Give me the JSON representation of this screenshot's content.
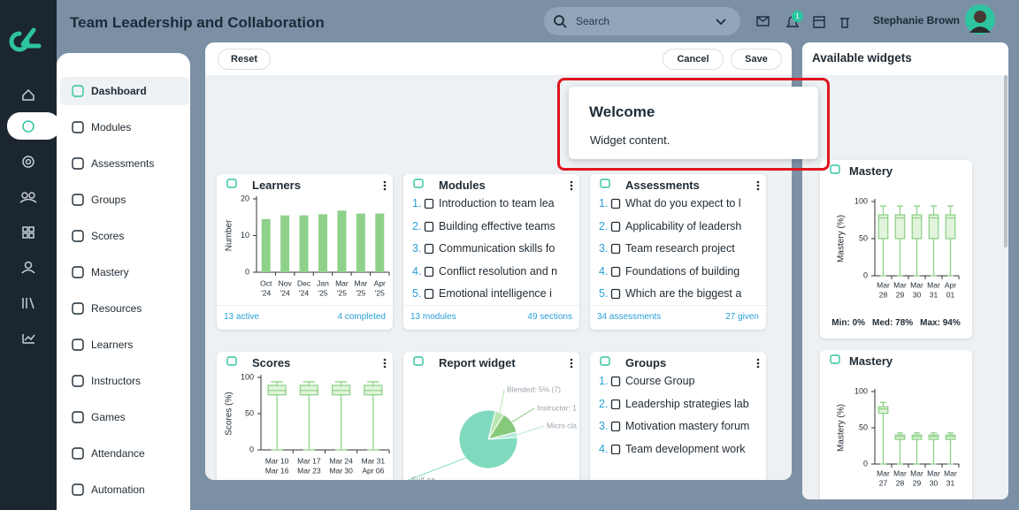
{
  "header": {
    "title": "Team Leadership and Collaboration",
    "search_placeholder": "Search",
    "notification_count": 1,
    "user_name": "Stephanie Brown"
  },
  "sidebar": {
    "items": [
      "Dashboard",
      "Modules",
      "Assessments",
      "Groups",
      "Scores",
      "Mastery",
      "Resources",
      "Learners",
      "Instructors",
      "Games",
      "Attendance",
      "Automation"
    ],
    "active": 0
  },
  "toolbar": {
    "reset": "Reset",
    "cancel": "Cancel",
    "save": "Save"
  },
  "welcome_widget": {
    "title": "Welcome",
    "content": "Widget content."
  },
  "widgets": [
    {
      "title": "Learners",
      "chart": {
        "type": "bar",
        "ylabel": "Number",
        "categories": [
          [
            "Oct",
            "'24"
          ],
          [
            "Nov",
            "'24"
          ],
          [
            "Dec",
            "'24"
          ],
          [
            "Jan",
            "'25"
          ],
          [
            "Mar",
            "'25"
          ],
          [
            "Mar",
            "'25"
          ],
          [
            "Apr",
            "'25"
          ]
        ],
        "values": [
          14.5,
          15.5,
          15.5,
          15.8,
          16.8,
          16,
          16
        ],
        "ylim": [
          0,
          20
        ],
        "yticks": [
          0,
          10,
          20
        ],
        "color": "#8fd18a"
      },
      "footer": [
        "13 active",
        "4 completed"
      ]
    },
    {
      "title": "Modules",
      "items": [
        {
          "marker": "1.",
          "text": "Introduction to team lea"
        },
        {
          "marker": "2.",
          "text": "Building effective teams"
        },
        {
          "marker": "3.",
          "text": "Communication skills fo"
        },
        {
          "marker": "4.",
          "text": "Conflict resolution and n"
        },
        {
          "marker": "5.",
          "text": "Emotional intelligence i"
        }
      ],
      "footer": [
        "13 modules",
        "49 sections"
      ]
    },
    {
      "title": "Assessments",
      "items": [
        {
          "marker": "1.",
          "text": "What do you expect to l"
        },
        {
          "marker": "2.",
          "text": "Applicability of leadersh"
        },
        {
          "marker": "3.",
          "text": "Team research project"
        },
        {
          "marker": "4.",
          "text": "Foundations of building "
        },
        {
          "marker": "5.",
          "text": "Which are the biggest a"
        }
      ],
      "footer": [
        "34 assessments",
        "27 given"
      ]
    },
    {
      "title": "Scores",
      "chart": {
        "type": "box",
        "ylabel": "Scores (%)",
        "categories": [
          [
            "Mar 10",
            "Mar 16"
          ],
          [
            "Mar 17",
            "Mar 23"
          ],
          [
            "Mar 24",
            "Mar 30"
          ],
          [
            "Mar 31",
            "Apr 06"
          ]
        ],
        "boxes": [
          {
            "min": 0,
            "q1": 76,
            "median": 82,
            "q3": 89,
            "max": 94
          },
          {
            "min": 0,
            "q1": 76,
            "median": 82,
            "q3": 89,
            "max": 94
          },
          {
            "min": 0,
            "q1": 76,
            "median": 82,
            "q3": 89,
            "max": 94
          },
          {
            "min": 0,
            "q1": 76,
            "median": 82,
            "q3": 89,
            "max": 94
          }
        ],
        "ylim": [
          0,
          100
        ],
        "yticks": [
          0,
          50,
          100
        ],
        "color": "#8fd18a"
      }
    },
    {
      "title": "Report widget",
      "chart": {
        "type": "pie",
        "slices": [
          {
            "label": "Blended: 5% (7)",
            "value": 5,
            "color": "#b9e6b0"
          },
          {
            "label": "Instructor: 1",
            "value": 12,
            "color": "#86c97a"
          },
          {
            "label": "Micro cla",
            "value": 3,
            "color": "#b5e8d6"
          },
          {
            "label": "Self-pa",
            "value": 80,
            "color": "#7fd9bf"
          }
        ]
      }
    },
    {
      "title": "Groups",
      "items": [
        {
          "marker": "1.",
          "text": "Course Group"
        },
        {
          "marker": "2.",
          "text": "Leadership strategies lab"
        },
        {
          "marker": "3.",
          "text": "Motivation mastery forum"
        },
        {
          "marker": "4.",
          "text": "Team development work"
        }
      ]
    }
  ],
  "available_widgets": {
    "title": "Available widgets",
    "widgets": [
      {
        "title": "Mastery",
        "chart": {
          "type": "box",
          "ylabel": "Mastery (%)",
          "categories": [
            [
              "Mar",
              "28"
            ],
            [
              "Mar",
              "29"
            ],
            [
              "Mar",
              "30"
            ],
            [
              "Mar",
              "31"
            ],
            [
              "Apr",
              "01"
            ]
          ],
          "boxes": [
            {
              "min": 0,
              "q1": 50,
              "median": 78,
              "q3": 82,
              "max": 94
            },
            {
              "min": 0,
              "q1": 50,
              "median": 78,
              "q3": 82,
              "max": 94
            },
            {
              "min": 0,
              "q1": 50,
              "median": 78,
              "q3": 82,
              "max": 94
            },
            {
              "min": 0,
              "q1": 50,
              "median": 78,
              "q3": 82,
              "max": 94
            },
            {
              "min": 0,
              "q1": 50,
              "median": 78,
              "q3": 82,
              "max": 94
            }
          ],
          "ylim": [
            0,
            100
          ],
          "yticks": [
            0,
            50,
            100
          ],
          "color": "#8fd18a"
        },
        "footer": [
          "Min: 0%",
          "Med: 78%",
          "Max: 94%"
        ]
      },
      {
        "title": "Mastery",
        "chart": {
          "type": "box",
          "ylabel": "Mastery (%)",
          "categories": [
            [
              "Mar",
              "27"
            ],
            [
              "Mar",
              "28"
            ],
            [
              "Mar",
              "29"
            ],
            [
              "Mar",
              "30"
            ],
            [
              "Mar",
              "31"
            ]
          ],
          "boxes": [
            {
              "min": 0,
              "q1": 70,
              "median": 76,
              "q3": 79,
              "max": 85
            },
            {
              "min": 0,
              "q1": 34,
              "median": 38,
              "q3": 40,
              "max": 43
            },
            {
              "min": 0,
              "q1": 34,
              "median": 38,
              "q3": 40,
              "max": 43
            },
            {
              "min": 0,
              "q1": 34,
              "median": 38,
              "q3": 40,
              "max": 43
            },
            {
              "min": 0,
              "q1": 34,
              "median": 38,
              "q3": 40,
              "max": 43
            }
          ],
          "ylim": [
            0,
            100
          ],
          "yticks": [
            0,
            50,
            100
          ],
          "color": "#8fd18a"
        }
      }
    ]
  }
}
